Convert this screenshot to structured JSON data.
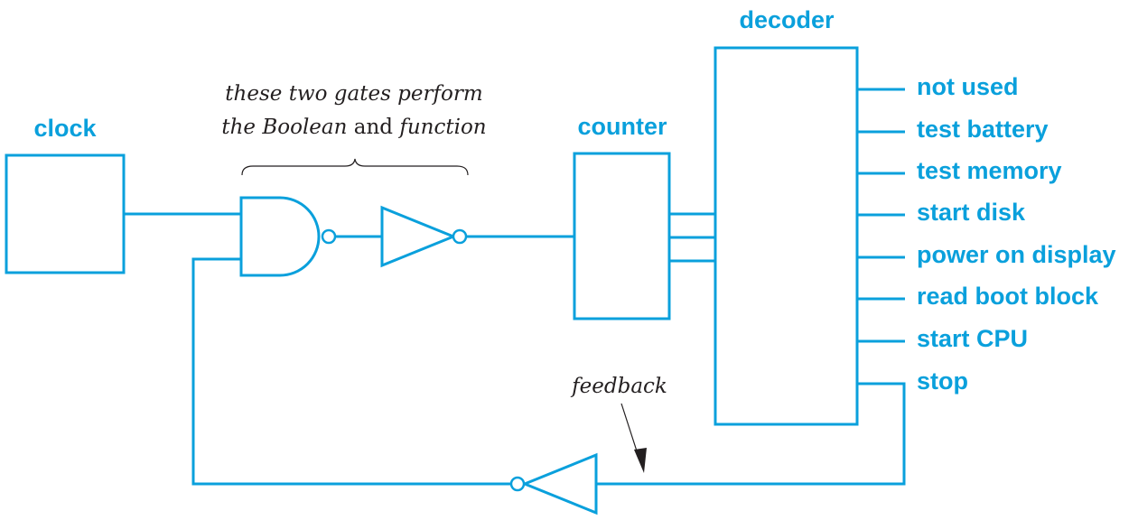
{
  "blocks": {
    "clock": "clock",
    "counter": "counter",
    "decoder": "decoder"
  },
  "annotation": {
    "line1": "these two gates perform",
    "line2_pre": "the Boolean",
    "line2_mid": "and",
    "line2_post": "function"
  },
  "feedback_label": "feedback",
  "outputs": [
    "not used",
    "test battery",
    "test memory",
    "start disk",
    "power on display",
    "read boot block",
    "start CPU",
    "stop"
  ],
  "colors": {
    "accent": "#0aa0dc",
    "annotation_text": "#231f20"
  }
}
